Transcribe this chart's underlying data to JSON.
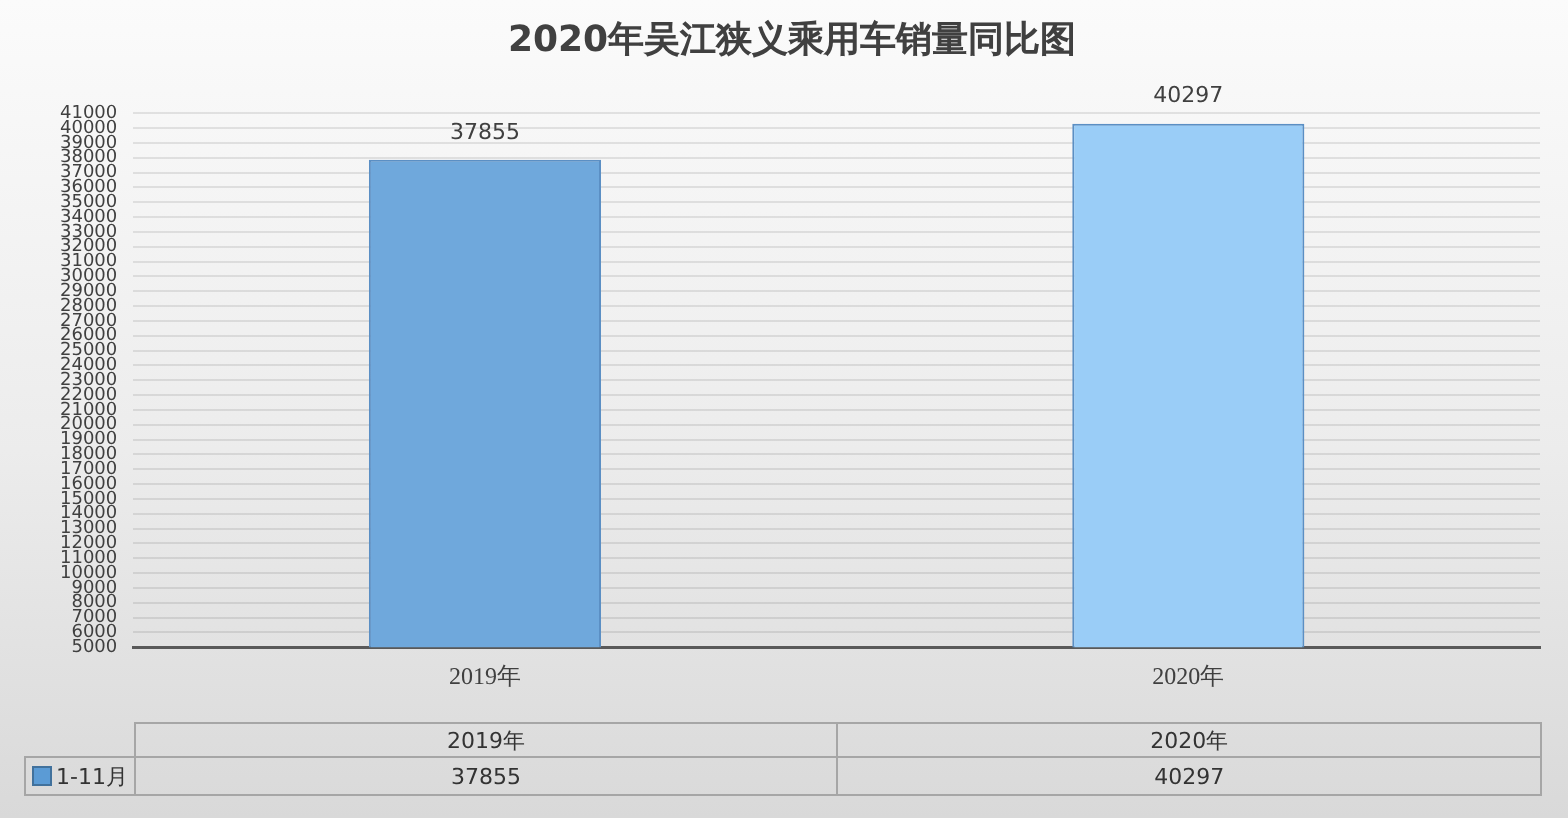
{
  "chart_data": [
    {
      "type": "bar",
      "title": "2020年吴江狭义乘用车销量同比图",
      "categories": [
        "2019年",
        "2020年"
      ],
      "series": [
        {
          "colors": [
            "#6fa8dc",
            "#9acdf7"
          ],
          "values": [
            37855,
            40297
          ],
          "value_labels": [
            "37855",
            "40297"
          ]
        }
      ],
      "ylim": [
        5000,
        41000
      ],
      "yticks": [
        5000,
        6000,
        7000,
        8000,
        9000,
        10000,
        11000,
        12000,
        13000,
        14000,
        15000,
        16000,
        17000,
        18000,
        19000,
        20000,
        21000,
        22000,
        23000,
        24000,
        25000,
        26000,
        27000,
        28000,
        29000,
        30000,
        31000,
        32000,
        33000,
        34000,
        35000,
        36000,
        37000,
        38000,
        39000,
        40000,
        41000
      ],
      "grid": "y"
    },
    {
      "type": "other",
      "categories": [
        "2019年",
        "2020年"
      ],
      "series": [
        {
          "name": "1-11月",
          "color": "#5b9bd5",
          "values": [
            37855,
            40297
          ]
        }
      ],
      "legend": "left",
      "data_labels": true
    }
  ]
}
